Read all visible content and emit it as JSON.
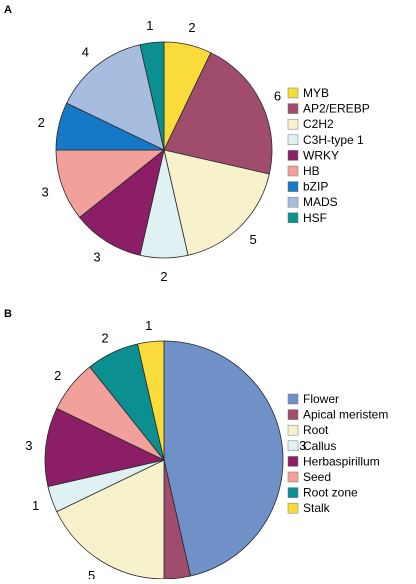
{
  "chart_data": [
    {
      "type": "pie",
      "panel_label": "A",
      "categories": [
        "MYB",
        "AP2/EREBP",
        "C2H2",
        "C3H-type 1",
        "WRKY",
        "HB",
        "bZIP",
        "MADS",
        "HSF"
      ],
      "values": [
        2,
        6,
        5,
        2,
        3,
        3,
        2,
        4,
        1
      ],
      "colors": [
        "#f9dc3c",
        "#a04c6c",
        "#f8f2cc",
        "#dff1f3",
        "#8b1e66",
        "#f2a09c",
        "#1579c8",
        "#a6bde0",
        "#0b8f90"
      ],
      "legend_position": "right",
      "slice_order": "clockwise from top"
    },
    {
      "type": "pie",
      "panel_label": "B",
      "categories": [
        "Flower",
        "Apical meristem",
        "Root",
        "Callus",
        "Herbaspirillum",
        "Seed",
        "Root zone",
        "Stalk"
      ],
      "values": [
        13,
        1,
        5,
        1,
        3,
        2,
        2,
        1
      ],
      "colors": [
        "#7090c8",
        "#a04c6c",
        "#f8f2cc",
        "#dff1f3",
        "#8b1e66",
        "#f2a09c",
        "#0b8f90",
        "#f9dc3c"
      ],
      "legend_position": "right",
      "slice_order": "clockwise from top"
    }
  ]
}
